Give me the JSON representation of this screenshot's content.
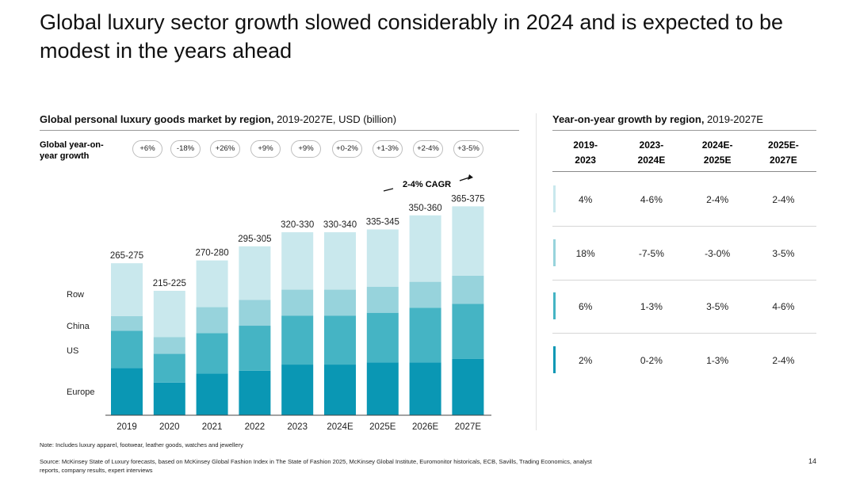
{
  "slide": {
    "title": "Global luxury sector growth slowed considerably in 2024 and is expected to be modest in the years ahead",
    "page_number": "14",
    "note": "Note: Includes luxury apparel, footwear, leather goods, watches and jewellery",
    "source": "Source: McKinsey State of Luxury forecasts, based on McKinsey Global Fashion Index in The State of Fashion 2025, McKinsey Global Institute, Euromonitor historicals, ECB, Savills, Trading Economics, analyst reports, company results, expert interviews"
  },
  "left_panel": {
    "title_bold": "Global personal luxury goods market by region,",
    "title_rest": " 2019-2027E, USD (billion)",
    "growth_label": "Global year-on- year growth",
    "growth_values": [
      "+6%",
      "-18%",
      "+26%",
      "+9%",
      "+9%",
      "+0-2%",
      "+1-3%",
      "+2-4%",
      "+3-5%"
    ],
    "cagr_label": "2-4% CAGR",
    "segment_labels": [
      "Row",
      "China",
      "US",
      "Europe"
    ]
  },
  "right_panel": {
    "title_bold": "Year-on-year growth by region,",
    "title_rest": " 2019-2027E",
    "headers": [
      "2019-\n2023",
      "2023-\n2024E",
      "2024E-\n2025E",
      "2025E-\n2027E"
    ],
    "rows": [
      {
        "region": "Row",
        "color": "#c9e8ed",
        "values": [
          "4%",
          "4-6%",
          "2-4%",
          "2-4%"
        ]
      },
      {
        "region": "China",
        "color": "#97d3dc",
        "values": [
          "18%",
          "-7-5%",
          "-3-0%",
          "3-5%"
        ]
      },
      {
        "region": "US",
        "color": "#45b4c4",
        "values": [
          "6%",
          "1-3%",
          "3-5%",
          "4-6%"
        ]
      },
      {
        "region": "Europe",
        "color": "#0a97b4",
        "values": [
          "2%",
          "0-2%",
          "1-3%",
          "2-4%"
        ]
      }
    ]
  },
  "colors": {
    "europe": "#0a97b4",
    "us": "#45b4c4",
    "china": "#97d3dc",
    "row": "#c9e8ed",
    "axis": "#444444"
  },
  "chart_data": {
    "type": "bar",
    "stacked": true,
    "title": "Global personal luxury goods market by region, 2019-2027E, USD (billion)",
    "categories": [
      "2019",
      "2020",
      "2021",
      "2022",
      "2023",
      "2024E",
      "2025E",
      "2026E",
      "2027E"
    ],
    "total_labels": [
      "265-275",
      "215-225",
      "270-280",
      "295-305",
      "320-330",
      "330-340",
      "335-345",
      "350-360",
      "365-375"
    ],
    "series": [
      {
        "name": "Europe",
        "values": [
          84,
          58,
          74,
          79,
          90,
          90,
          94,
          94,
          100
        ]
      },
      {
        "name": "US",
        "values": [
          66,
          51,
          72,
          80,
          87,
          87,
          88,
          97,
          98
        ]
      },
      {
        "name": "China",
        "values": [
          26,
          30,
          46,
          46,
          46,
          46,
          46,
          46,
          50
        ]
      },
      {
        "name": "Row",
        "values": [
          94,
          82,
          83,
          95,
          102,
          102,
          102,
          118,
          123
        ]
      }
    ],
    "ylim": [
      0,
      380
    ],
    "xlabel": "",
    "ylabel": ""
  }
}
